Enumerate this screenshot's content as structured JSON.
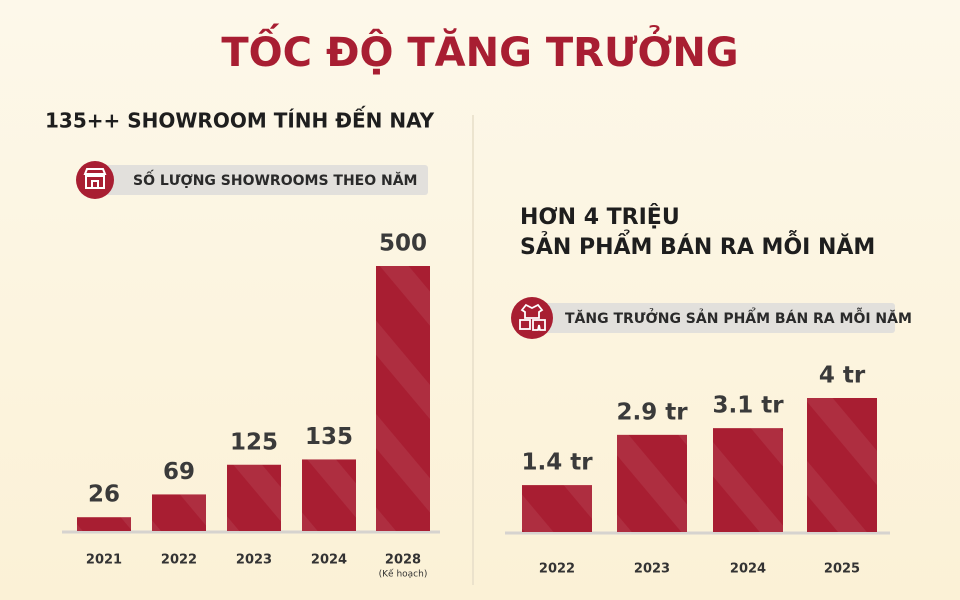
{
  "title": "TỐC ĐỘ TĂNG TRƯỞNG",
  "chart_data": [
    {
      "type": "bar",
      "heading": "135++ SHOWROOM TÍNH ĐẾN NAY",
      "badge": "SỐ LƯỢNG SHOWROOMS THEO NĂM",
      "categories": [
        "2021",
        "2022",
        "2023",
        "2024",
        "2028"
      ],
      "category_notes": [
        null,
        null,
        null,
        null,
        "(Kế hoạch)"
      ],
      "values": [
        26,
        69,
        125,
        135,
        500
      ],
      "color": "#a81e32"
    },
    {
      "type": "bar",
      "heading": [
        "HƠN 4 TRIỆU",
        "SẢN PHẨM BÁN RA MỖI NĂM"
      ],
      "badge": "TĂNG TRƯỞNG SẢN PHẨM BÁN RA MỖI NĂM",
      "categories": [
        "2022",
        "2023",
        "2024",
        "2025"
      ],
      "values": [
        1.4,
        2.9,
        3.1,
        4
      ],
      "value_labels": [
        "1.4 tr",
        "2.9 tr",
        "3.1 tr",
        "4 tr"
      ],
      "color": "#a81e32"
    }
  ]
}
